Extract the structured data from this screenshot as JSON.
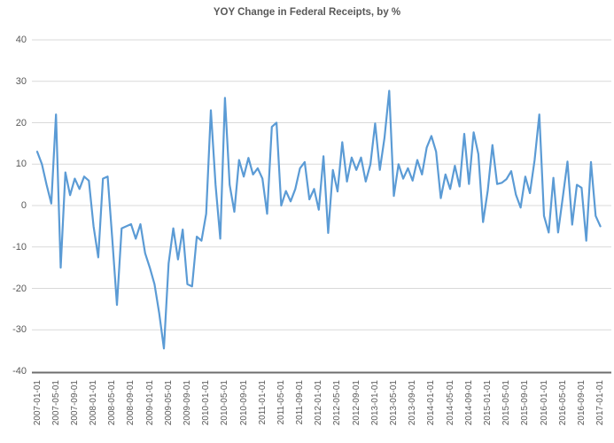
{
  "title": "YOY Change in Federal Receipts, by %",
  "colors": {
    "line": "#5B9BD5",
    "grid": "#D9D9D9",
    "axis": "#6E6E6E",
    "text": "#595959",
    "background": "#FFFFFF"
  },
  "chart_data": {
    "type": "line",
    "title": "YOY Change in Federal Receipts, by %",
    "xlabel": "",
    "ylabel": "",
    "x_start": "2007-01-01",
    "x_end": "2017-01-01",
    "x_frequency": "monthly",
    "ylim": [
      -40,
      40
    ],
    "y_tick_labels": [
      40,
      30,
      20,
      10,
      0,
      -10,
      -20,
      -30,
      -40
    ],
    "x_tick_labels": [
      "2007-01-01",
      "2007-05-01",
      "2007-09-01",
      "2008-01-01",
      "2008-05-01",
      "2008-09-01",
      "2009-01-01",
      "2009-05-01",
      "2009-09-01",
      "2010-01-01",
      "2010-05-01",
      "2010-09-01",
      "2011-01-01",
      "2011-05-01",
      "2011-09-01",
      "2012-01-01",
      "2012-05-01",
      "2012-09-01",
      "2013-01-01",
      "2013-05-01",
      "2013-09-01",
      "2014-01-01",
      "2014-05-01",
      "2014-09-01",
      "2015-01-01",
      "2015-05-01",
      "2015-09-01",
      "2016-01-01",
      "2016-05-01",
      "2016-09-01",
      "2017-01-01"
    ],
    "x_tick_every_n_points": 4,
    "legend": "none",
    "grid": "horizontal",
    "values": [
      13,
      10,
      5,
      0.5,
      22,
      -15,
      8,
      2.5,
      6.5,
      4,
      7,
      6,
      -5,
      -12.5,
      6.5,
      7,
      -8,
      -24,
      -5.5,
      -5,
      -4.5,
      -8,
      -4.5,
      -11.5,
      -15,
      -19,
      -26,
      -34.5,
      -14,
      -5.5,
      -13,
      -5.8,
      -19,
      -19.5,
      -7.5,
      -8.5,
      -2,
      23,
      5,
      -8,
      26,
      5,
      -1.5,
      11,
      7,
      11.5,
      7.5,
      9,
      6.5,
      -2,
      19,
      20,
      0,
      3.5,
      1,
      4,
      9,
      10.5,
      1.5,
      4,
      -1,
      11.9,
      -6.6,
      8.6,
      3.4,
      15.3,
      5.8,
      11.6,
      8.6,
      11.6,
      5.8,
      10,
      19.8,
      8.6,
      16.4,
      27.7,
      2.3,
      10,
      6.5,
      9,
      6,
      11,
      7.5,
      14,
      16.8,
      13,
      1.8,
      7.5,
      4,
      9.6,
      4.6,
      17.3,
      5.2,
      17.7,
      12.4,
      -4,
      3.6,
      14.6,
      5.2,
      5.5,
      6.4,
      8.3,
      2.6,
      -0.5,
      7,
      3,
      11,
      22,
      -2.5,
      -6.5,
      6.7,
      -6.5,
      2,
      10.6,
      -4.6,
      5,
      4.3,
      -8.5,
      10.5,
      -2.5,
      -5
    ]
  }
}
